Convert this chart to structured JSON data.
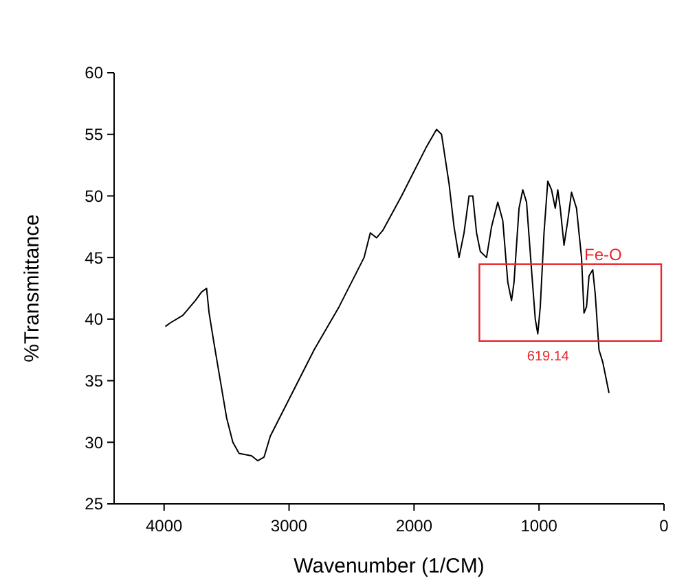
{
  "chart_data": {
    "type": "line",
    "xlabel": "Wavenumber (1/CM)",
    "ylabel": "%Transmittance",
    "xlim": [
      4400,
      0
    ],
    "xticks": [
      4000,
      3000,
      2000,
      1000,
      0
    ],
    "ylim": [
      25,
      60
    ],
    "yticks": [
      25,
      30,
      35,
      40,
      45,
      50,
      55,
      60
    ],
    "grid": false,
    "line_style": "solid",
    "series": [
      {
        "color": "#000000",
        "x": [
          3990,
          3950,
          3850,
          3750,
          3700,
          3660,
          3640,
          3600,
          3550,
          3500,
          3450,
          3400,
          3300,
          3250,
          3200,
          3150,
          3000,
          2800,
          2600,
          2400,
          2350,
          2300,
          2250,
          2100,
          2000,
          1900,
          1820,
          1780,
          1720,
          1680,
          1640,
          1600,
          1560,
          1530,
          1500,
          1470,
          1420,
          1380,
          1330,
          1290,
          1250,
          1220,
          1200,
          1160,
          1130,
          1100,
          1060,
          1030,
          1010,
          990,
          960,
          930,
          900,
          870,
          850,
          830,
          800,
          770,
          740,
          700,
          660,
          640,
          620,
          600,
          570,
          550,
          520,
          490,
          460,
          440
        ],
        "values": [
          39.4,
          39.7,
          40.3,
          41.5,
          42.2,
          42.5,
          40.5,
          38,
          35,
          32,
          30,
          29.1,
          28.9,
          28.5,
          28.8,
          30.5,
          33.5,
          37.5,
          41,
          45,
          47,
          46.6,
          47.2,
          50,
          52,
          54,
          55.4,
          55,
          51,
          47.5,
          45,
          47,
          50,
          50,
          47,
          45.5,
          45,
          47.5,
          49.5,
          48,
          43,
          41.5,
          43,
          49,
          50.5,
          49.5,
          44,
          40,
          38.8,
          41,
          47,
          51.2,
          50.5,
          49,
          50.5,
          49,
          46,
          48,
          50.3,
          49,
          45,
          40.5,
          41,
          43.5,
          44,
          42,
          37.5,
          36.5,
          35,
          34
        ]
      }
    ],
    "annotations": [
      {
        "text": "Fe-O",
        "x": 619.14,
        "y": 44.8
      },
      "619.14"
    ]
  }
}
